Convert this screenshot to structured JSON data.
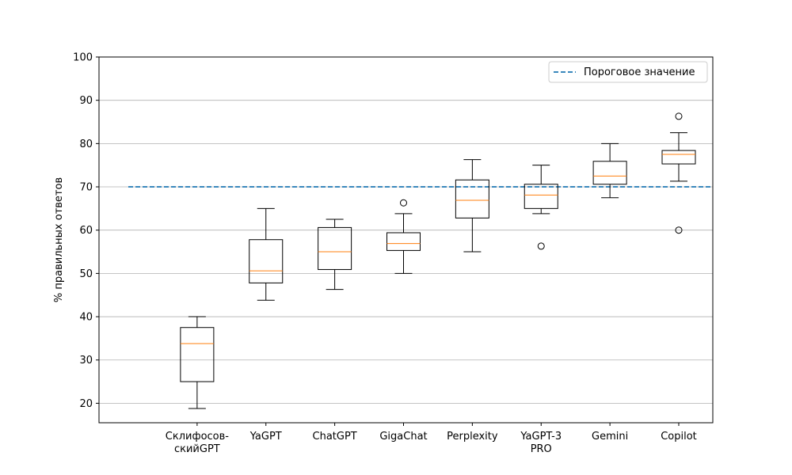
{
  "chart_data": {
    "type": "box",
    "title": "",
    "xlabel": "",
    "ylabel": "% правильных ответов",
    "ylim": [
      15.5,
      100
    ],
    "yticks": [
      20,
      30,
      40,
      50,
      60,
      70,
      80,
      90,
      100
    ],
    "grid": "y",
    "categories": [
      [
        "Склифосов-",
        "скийGPT"
      ],
      [
        "YaGPT"
      ],
      [
        "ChatGPT"
      ],
      [
        "GigaChat"
      ],
      [
        "Perplexity"
      ],
      [
        "YaGPT-3",
        "PRO"
      ],
      [
        "Gemini"
      ],
      [
        "Copilot"
      ]
    ],
    "boxes": [
      {
        "whislo": 18.8,
        "q1": 25.0,
        "med": 33.8,
        "q3": 37.5,
        "whishi": 40.0,
        "fliers": []
      },
      {
        "whislo": 43.8,
        "q1": 47.8,
        "med": 50.6,
        "q3": 57.8,
        "whishi": 65.0,
        "fliers": []
      },
      {
        "whislo": 46.3,
        "q1": 50.9,
        "med": 55.0,
        "q3": 60.6,
        "whishi": 62.5,
        "fliers": []
      },
      {
        "whislo": 50.0,
        "q1": 55.3,
        "med": 56.9,
        "q3": 59.4,
        "whishi": 63.8,
        "fliers": [
          66.3
        ]
      },
      {
        "whislo": 55.0,
        "q1": 62.8,
        "med": 66.9,
        "q3": 71.6,
        "whishi": 76.3,
        "fliers": []
      },
      {
        "whislo": 63.8,
        "q1": 65.0,
        "med": 68.1,
        "q3": 70.6,
        "whishi": 75.0,
        "fliers": [
          56.3
        ]
      },
      {
        "whislo": 67.5,
        "q1": 70.6,
        "med": 72.5,
        "q3": 75.9,
        "whishi": 80.0,
        "fliers": []
      },
      {
        "whislo": 71.3,
        "q1": 75.3,
        "med": 77.5,
        "q3": 78.4,
        "whishi": 82.5,
        "fliers": [
          86.3,
          60.0
        ]
      }
    ],
    "threshold": {
      "value": 70,
      "label": "Пороговое значение",
      "x_start_category": 0.5
    },
    "legend": {
      "position": "top-right"
    },
    "colors": {
      "box": "#000000",
      "median": "#ff7f0e",
      "threshold": "#1f77b4",
      "grid": "#b0b0b0"
    }
  }
}
